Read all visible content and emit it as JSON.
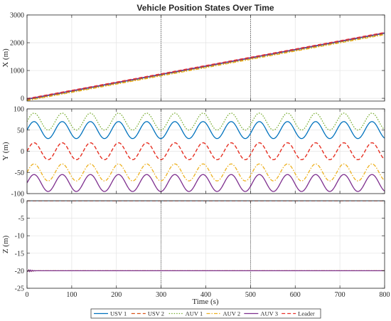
{
  "chart_data": {
    "type": "line",
    "title": "Vehicle Position States Over Time",
    "xlabel": "Time (s)",
    "xlim": [
      0,
      800
    ],
    "x_ticks": [
      0,
      100,
      200,
      300,
      400,
      500,
      600,
      700,
      800
    ],
    "grid": true,
    "vertical_markers": [
      300,
      500
    ],
    "legend": {
      "placement": "bottom-center",
      "entries": [
        "USV 1",
        "USV 2",
        "AUV 1",
        "AUV 2",
        "AUV 3",
        "Leader"
      ]
    },
    "series_styles": [
      {
        "name": "USV 1",
        "color": "#0072BD",
        "dash": "solid"
      },
      {
        "name": "USV 2",
        "color": "#D95319",
        "dash": "dashed"
      },
      {
        "name": "AUV 1",
        "color": "#77AC30",
        "dash": "dotted"
      },
      {
        "name": "AUV 2",
        "color": "#EDB120",
        "dash": "dashdot"
      },
      {
        "name": "AUV 3",
        "color": "#7E2F8E",
        "dash": "solid"
      },
      {
        "name": "Leader",
        "color": "#E8322B",
        "dash": "dashed"
      }
    ],
    "subplots": [
      {
        "ylabel": "X (m)",
        "ylim": [
          -100,
          3000
        ],
        "y_ticks": [
          0,
          1000,
          2000,
          3000
        ],
        "series": [
          {
            "name": "USV 1",
            "x": [
              0,
              800
            ],
            "y": [
              -40,
              2340
            ]
          },
          {
            "name": "USV 2",
            "x": [
              0,
              800
            ],
            "y": [
              -55,
              2325
            ]
          },
          {
            "name": "AUV 1",
            "x": [
              0,
              800
            ],
            "y": [
              -70,
              2310
            ]
          },
          {
            "name": "AUV 2",
            "x": [
              0,
              800
            ],
            "y": [
              -85,
              2290
            ]
          },
          {
            "name": "AUV 3",
            "x": [
              0,
              800
            ],
            "y": [
              -25,
              2355
            ]
          },
          {
            "name": "Leader",
            "x": [
              0,
              800
            ],
            "y": [
              -10,
              2370
            ]
          }
        ]
      },
      {
        "ylabel": "Y (m)",
        "ylim": [
          -100,
          100
        ],
        "y_ticks": [
          -100,
          -50,
          0,
          50,
          100
        ],
        "series_sinusoids": [
          {
            "name": "AUV 1",
            "offset": 70,
            "amplitude": 20,
            "period_s": 63
          },
          {
            "name": "USV 1",
            "offset": 50,
            "amplitude": 20,
            "period_s": 63
          },
          {
            "name": "USV 2",
            "offset": 0,
            "amplitude": 20,
            "period_s": 63
          },
          {
            "name": "Leader",
            "offset": 0,
            "amplitude": 20,
            "period_s": 63
          },
          {
            "name": "AUV 2",
            "offset": -50,
            "amplitude": 20,
            "period_s": 63
          },
          {
            "name": "AUV 3",
            "offset": -75,
            "amplitude": 20,
            "period_s": 63
          }
        ]
      },
      {
        "ylabel": "Z (m)",
        "ylim": [
          -25,
          0
        ],
        "y_ticks": [
          -25,
          -20,
          -15,
          -10,
          -5,
          0
        ],
        "series_levels": [
          {
            "name": "USV 1",
            "value": 0
          },
          {
            "name": "USV 2",
            "value": 0
          },
          {
            "name": "Leader",
            "value": 0
          },
          {
            "name": "AUV 1",
            "value": -20
          },
          {
            "name": "AUV 2",
            "value": -20
          },
          {
            "name": "AUV 3",
            "value": -20
          }
        ]
      }
    ]
  }
}
